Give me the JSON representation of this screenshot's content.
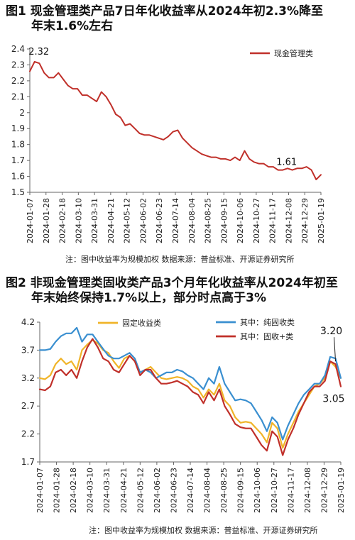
{
  "figures": [
    {
      "title_line1": "图1  现金管理类产品7日年化收益率从2024年初2.3%降至",
      "title_line2": "年末1.6%左右",
      "note": "注：图中收益率为规模加权    数据来源：普益标准、开源证券研究所"
    },
    {
      "title_line1": "图2  非现金管理类固收类产品3个月年化收益率从2024年初至",
      "title_line2": "年末始终保持1.7%以上，部分时点高于3%",
      "note": "注：图中收益率为规模加权    数据来源：普益标准、开源证券研究所"
    }
  ],
  "chart_data": [
    {
      "type": "line",
      "ylim": [
        1.5,
        2.4
      ],
      "yticks": [
        "1.5",
        "1.6",
        "1.7",
        "1.8",
        "1.9",
        "2",
        "2.1",
        "2.2",
        "2.3",
        "2.4"
      ],
      "xticks": [
        "2024-01-07",
        "2024-01-28",
        "2024-02-18",
        "2024-03-10",
        "2024-03-31",
        "2024-04-21",
        "2024-05-12",
        "2024-06-02",
        "2024-06-23",
        "2024-07-14",
        "2024-08-04",
        "2024-08-25",
        "2024-09-15",
        "2024-10-06",
        "2024-10-27",
        "2024-11-17",
        "2024-12-08",
        "2024-12-29",
        "2025-01-19"
      ],
      "legend_position": "top-right",
      "annotations": [
        {
          "text": "2.32",
          "x_index": 1,
          "y": 2.32
        },
        {
          "text": "1.61",
          "x_index": 55,
          "y": 1.61
        }
      ],
      "series": [
        {
          "name": "现金管理类",
          "color": "#c0302a",
          "values": [
            2.26,
            2.32,
            2.31,
            2.25,
            2.22,
            2.22,
            2.25,
            2.21,
            2.17,
            2.15,
            2.15,
            2.11,
            2.11,
            2.09,
            2.07,
            2.13,
            2.1,
            2.05,
            1.99,
            1.97,
            1.92,
            1.93,
            1.9,
            1.87,
            1.86,
            1.86,
            1.85,
            1.84,
            1.83,
            1.85,
            1.88,
            1.89,
            1.84,
            1.81,
            1.78,
            1.76,
            1.74,
            1.73,
            1.72,
            1.72,
            1.71,
            1.71,
            1.7,
            1.72,
            1.7,
            1.76,
            1.71,
            1.69,
            1.68,
            1.68,
            1.66,
            1.66,
            1.64,
            1.64,
            1.65,
            1.64,
            1.65,
            1.65,
            1.66,
            1.64,
            1.58,
            1.61
          ]
        }
      ]
    },
    {
      "type": "line",
      "ylim": [
        1.7,
        4.2
      ],
      "yticks": [
        "1.7",
        "2.2",
        "2.7",
        "3.2",
        "3.7",
        "4.2"
      ],
      "xticks": [
        "2024-01-07",
        "2024-01-28",
        "2024-02-18",
        "2024-03-10",
        "2024-03-31",
        "2024-04-21",
        "2024-05-12",
        "2024-06-02",
        "2024-06-23",
        "2024-07-14",
        "2024-08-04",
        "2024-08-25",
        "2024-09-15",
        "2024-10-06",
        "2024-10-27",
        "2024-11-17",
        "2024-12-08",
        "2024-12-29",
        "2025-01-19"
      ],
      "legend_position": "top",
      "annotations": [
        {
          "text": "3.20",
          "series": 1,
          "x_index": 56,
          "y": 3.5
        },
        {
          "text": "3.05",
          "series": 2,
          "x_index": 57,
          "y": 3.05
        }
      ],
      "series": [
        {
          "name": "固定收益类",
          "color": "#f0b429",
          "values": [
            3.2,
            3.18,
            3.25,
            3.45,
            3.55,
            3.45,
            3.5,
            3.35,
            3.7,
            3.8,
            3.88,
            3.82,
            3.7,
            3.65,
            3.5,
            3.38,
            3.55,
            3.6,
            3.5,
            3.3,
            3.35,
            3.4,
            3.3,
            3.2,
            3.18,
            3.2,
            3.22,
            3.2,
            3.15,
            3.05,
            3.0,
            2.85,
            3.0,
            2.9,
            3.1,
            2.8,
            2.7,
            2.5,
            2.4,
            2.42,
            2.4,
            2.3,
            2.2,
            2.05,
            2.4,
            2.3,
            1.95,
            2.2,
            2.4,
            2.6,
            2.75,
            2.9,
            3.05,
            3.1,
            3.2,
            3.5,
            3.4,
            3.2
          ]
        },
        {
          "name": "其中：纯固收类",
          "color": "#3a8fd0",
          "values": [
            3.7,
            3.7,
            3.72,
            3.85,
            3.95,
            4.0,
            4.0,
            4.1,
            3.85,
            3.98,
            3.98,
            3.85,
            3.72,
            3.6,
            3.55,
            3.55,
            3.6,
            3.65,
            3.55,
            3.3,
            3.35,
            3.3,
            3.2,
            3.25,
            3.3,
            3.3,
            3.35,
            3.32,
            3.25,
            3.2,
            3.1,
            3.0,
            3.2,
            3.1,
            3.4,
            3.1,
            2.95,
            2.8,
            2.82,
            2.8,
            2.75,
            2.6,
            2.45,
            2.25,
            2.5,
            2.4,
            2.1,
            2.35,
            2.55,
            2.75,
            2.9,
            3.0,
            3.1,
            3.1,
            3.25,
            3.58,
            3.55,
            3.2
          ]
        },
        {
          "name": "其中：固收+类",
          "color": "#c0302a",
          "values": [
            3.0,
            2.98,
            3.05,
            3.3,
            3.35,
            3.25,
            3.35,
            3.2,
            3.5,
            3.75,
            3.9,
            3.75,
            3.55,
            3.5,
            3.35,
            3.3,
            3.45,
            3.6,
            3.5,
            3.25,
            3.35,
            3.35,
            3.2,
            3.1,
            3.1,
            3.12,
            3.15,
            3.1,
            3.05,
            2.95,
            2.9,
            2.75,
            2.95,
            2.8,
            3.0,
            2.7,
            2.55,
            2.38,
            2.32,
            2.3,
            2.3,
            2.15,
            2.0,
            1.9,
            2.25,
            2.15,
            1.82,
            2.1,
            2.3,
            2.55,
            2.75,
            2.95,
            3.05,
            3.05,
            3.15,
            3.5,
            3.45,
            3.05
          ]
        }
      ]
    }
  ]
}
